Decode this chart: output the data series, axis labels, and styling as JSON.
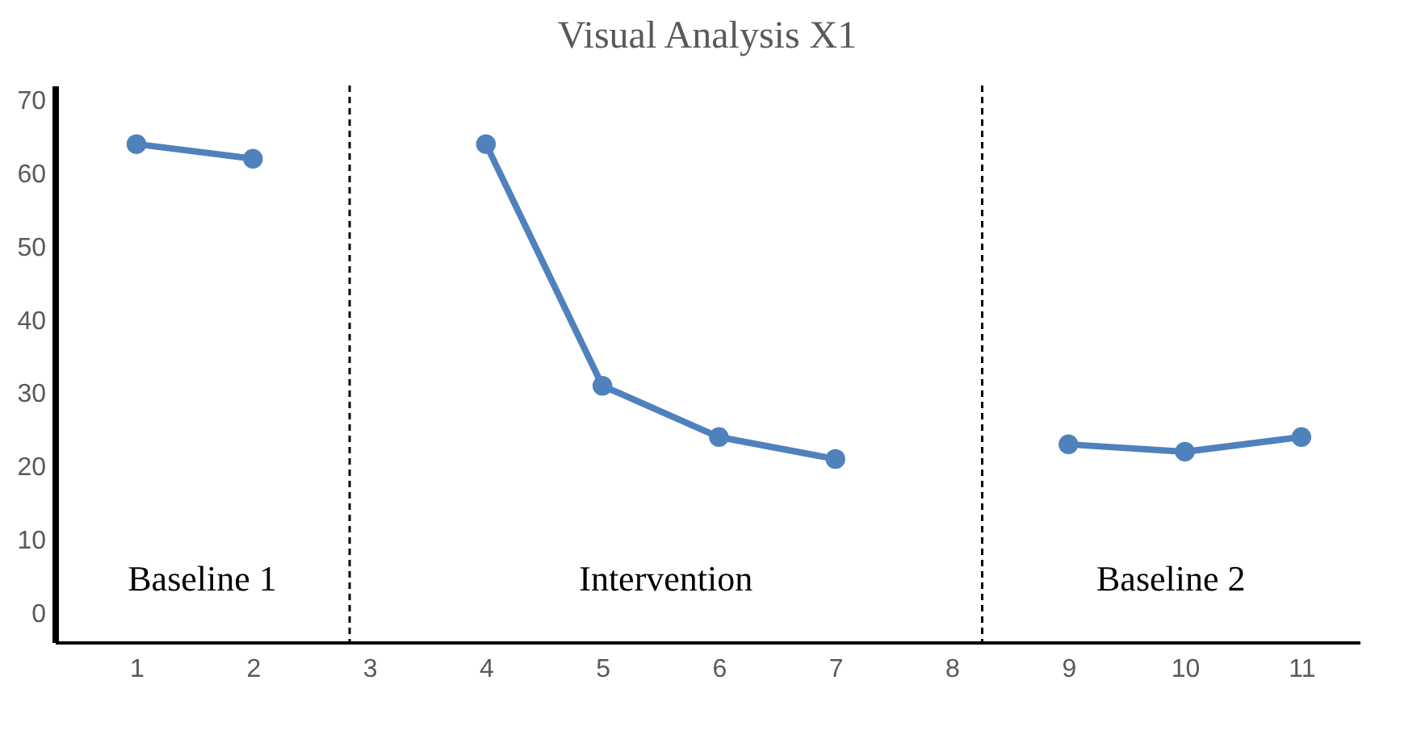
{
  "chart_data": {
    "type": "line",
    "title": "Visual Analysis X1",
    "x": [
      1,
      2,
      3,
      4,
      5,
      6,
      7,
      8,
      9,
      10,
      11
    ],
    "series": [
      {
        "color": "#4f81bd",
        "values": [
          64,
          62,
          null,
          64,
          31,
          24,
          21,
          null,
          23,
          22,
          24
        ]
      }
    ],
    "xlim": [
      0.3,
      11.5
    ],
    "xticks": [
      1,
      2,
      3,
      4,
      5,
      6,
      7,
      8,
      9,
      10,
      11
    ],
    "ylim": [
      -4,
      72
    ],
    "yticks": [
      0,
      10,
      20,
      30,
      40,
      50,
      60,
      70
    ],
    "ref_lines": [
      {
        "axis": "x",
        "value": 2.83,
        "line_style": "dashed",
        "color": "#000000"
      },
      {
        "axis": "x",
        "value": 8.26,
        "line_style": "dashed",
        "color": "#000000"
      }
    ],
    "annotations": [
      "Baseline 1",
      "Intervention",
      "Baseline 2"
    ],
    "marker": "circle",
    "line_style": "solid",
    "grid": false
  }
}
